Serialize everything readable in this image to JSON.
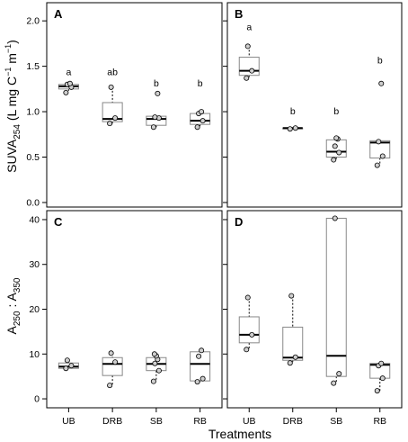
{
  "chart_data": {
    "type": "box",
    "xlabel": "Treatments",
    "categories": [
      "UB",
      "DRB",
      "SB",
      "RB"
    ],
    "panels": [
      {
        "label": "A",
        "row": 0,
        "col": 0,
        "ylabel": "SUVA254 (L mg C-1 m-1)",
        "ylim": [
          -0.05,
          2.2
        ],
        "yticks": [
          0.0,
          0.5,
          1.0,
          1.5,
          2.0
        ],
        "ytick_labels": [
          "0.0",
          "0.5",
          "1.0",
          "1.5",
          "2.0"
        ],
        "letters": [
          "a",
          "ab",
          "b",
          "b"
        ],
        "letter_y": [
          1.4,
          1.4,
          1.28,
          1.28
        ],
        "boxes": [
          {
            "min": 1.22,
            "q1": 1.25,
            "median": 1.28,
            "q3": 1.3,
            "max": 1.31,
            "points": [
              1.21,
              1.27,
              1.3,
              1.31
            ]
          },
          {
            "min": 0.87,
            "q1": 0.89,
            "median": 0.92,
            "q3": 1.1,
            "max": 1.27,
            "points": [
              0.87,
              0.93,
              1.27
            ]
          },
          {
            "min": 0.83,
            "q1": 0.85,
            "median": 0.92,
            "q3": 0.95,
            "max": 0.96,
            "points": [
              0.83,
              0.93,
              0.94,
              1.2
            ]
          },
          {
            "min": 0.83,
            "q1": 0.86,
            "median": 0.9,
            "q3": 0.98,
            "max": 1.0,
            "points": [
              0.83,
              0.9,
              0.98,
              1.0
            ]
          }
        ]
      },
      {
        "label": "B",
        "row": 0,
        "col": 1,
        "ylim": [
          -0.05,
          2.2
        ],
        "yticks": [
          0.0,
          0.5,
          1.0,
          1.5,
          2.0
        ],
        "letters": [
          "a",
          "b",
          "b",
          "b"
        ],
        "letter_y": [
          1.9,
          0.97,
          0.97,
          1.53
        ],
        "boxes": [
          {
            "min": 1.37,
            "q1": 1.4,
            "median": 1.45,
            "q3": 1.6,
            "max": 1.72,
            "points": [
              1.37,
              1.45,
              1.72
            ]
          },
          {
            "min": 0.81,
            "q1": 0.81,
            "median": 0.82,
            "q3": 0.82,
            "max": 0.82,
            "points": [
              0.81,
              0.82
            ]
          },
          {
            "min": 0.47,
            "q1": 0.5,
            "median": 0.56,
            "q3": 0.69,
            "max": 0.71,
            "points": [
              0.47,
              0.55,
              0.62,
              0.7,
              0.71
            ]
          },
          {
            "min": 0.41,
            "q1": 0.49,
            "median": 0.66,
            "q3": 0.68,
            "max": 0.68,
            "points": [
              0.41,
              0.51,
              0.67,
              1.31
            ]
          }
        ]
      },
      {
        "label": "C",
        "row": 1,
        "col": 0,
        "ylabel": "A250 : A350",
        "ylim": [
          -2,
          42
        ],
        "yticks": [
          0,
          10,
          20,
          30,
          40
        ],
        "ytick_labels": [
          "0",
          "10",
          "20",
          "30",
          "40"
        ],
        "boxes": [
          {
            "min": 6.8,
            "q1": 6.8,
            "median": 7.2,
            "q3": 8.0,
            "max": 8.6,
            "points": [
              6.8,
              7.4,
              8.6
            ]
          },
          {
            "min": 3.0,
            "q1": 5.2,
            "median": 7.8,
            "q3": 9.2,
            "max": 10.2,
            "points": [
              3.0,
              8.2,
              10.2
            ]
          },
          {
            "min": 3.9,
            "q1": 6.3,
            "median": 7.8,
            "q3": 9.2,
            "max": 10.0,
            "points": [
              3.9,
              6.3,
              7.9,
              8.8,
              9.6,
              10.0
            ]
          },
          {
            "min": 3.8,
            "q1": 4.0,
            "median": 7.8,
            "q3": 10.5,
            "max": 10.8,
            "points": [
              3.8,
              4.5,
              9.5,
              10.8
            ]
          }
        ]
      },
      {
        "label": "D",
        "row": 1,
        "col": 1,
        "ylim": [
          -2,
          42
        ],
        "yticks": [
          0,
          10,
          20,
          30,
          40
        ],
        "boxes": [
          {
            "min": 11.0,
            "q1": 12.5,
            "median": 14.3,
            "q3": 18.3,
            "max": 22.6,
            "points": [
              11.0,
              14.3,
              22.6
            ]
          },
          {
            "min": 8.0,
            "q1": 8.6,
            "median": 9.2,
            "q3": 16.0,
            "max": 23.0,
            "points": [
              8.0,
              9.3,
              23.0
            ]
          },
          {
            "min": 3.5,
            "q1": 5.0,
            "median": 9.6,
            "q3": 40.3,
            "max": 40.3,
            "points": [
              3.5,
              5.6,
              40.3
            ]
          },
          {
            "min": 1.8,
            "q1": 4.6,
            "median": 7.6,
            "q3": 7.9,
            "max": 8.0,
            "points": [
              1.8,
              4.6,
              7.4,
              7.9
            ]
          }
        ]
      }
    ]
  }
}
